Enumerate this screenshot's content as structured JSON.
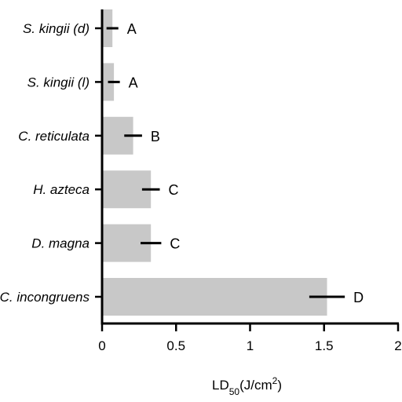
{
  "chart_data": {
    "type": "bar",
    "orientation": "horizontal",
    "categories": [
      "S. kingii (d)",
      "S. kingii (l)",
      "C. reticulata",
      "H. azteca",
      "D. magna",
      "C. incongruens"
    ],
    "values": [
      0.07,
      0.08,
      0.21,
      0.33,
      0.33,
      1.52
    ],
    "errors": [
      0.04,
      0.04,
      0.06,
      0.06,
      0.07,
      0.12
    ],
    "group_labels": [
      "A",
      "A",
      "B",
      "C",
      "C",
      "D"
    ],
    "bar_color": "#c8c8c8",
    "xlim": [
      0,
      2
    ],
    "x_ticks": [
      "0",
      "0.5",
      "1",
      "1.5",
      "2"
    ],
    "xlabel": {
      "main": "LD",
      "sub": "50",
      "unit_pre": "(J/cm",
      "sup": "2",
      "unit_post": ")"
    },
    "ylabel": "",
    "title": "",
    "grid": false
  }
}
